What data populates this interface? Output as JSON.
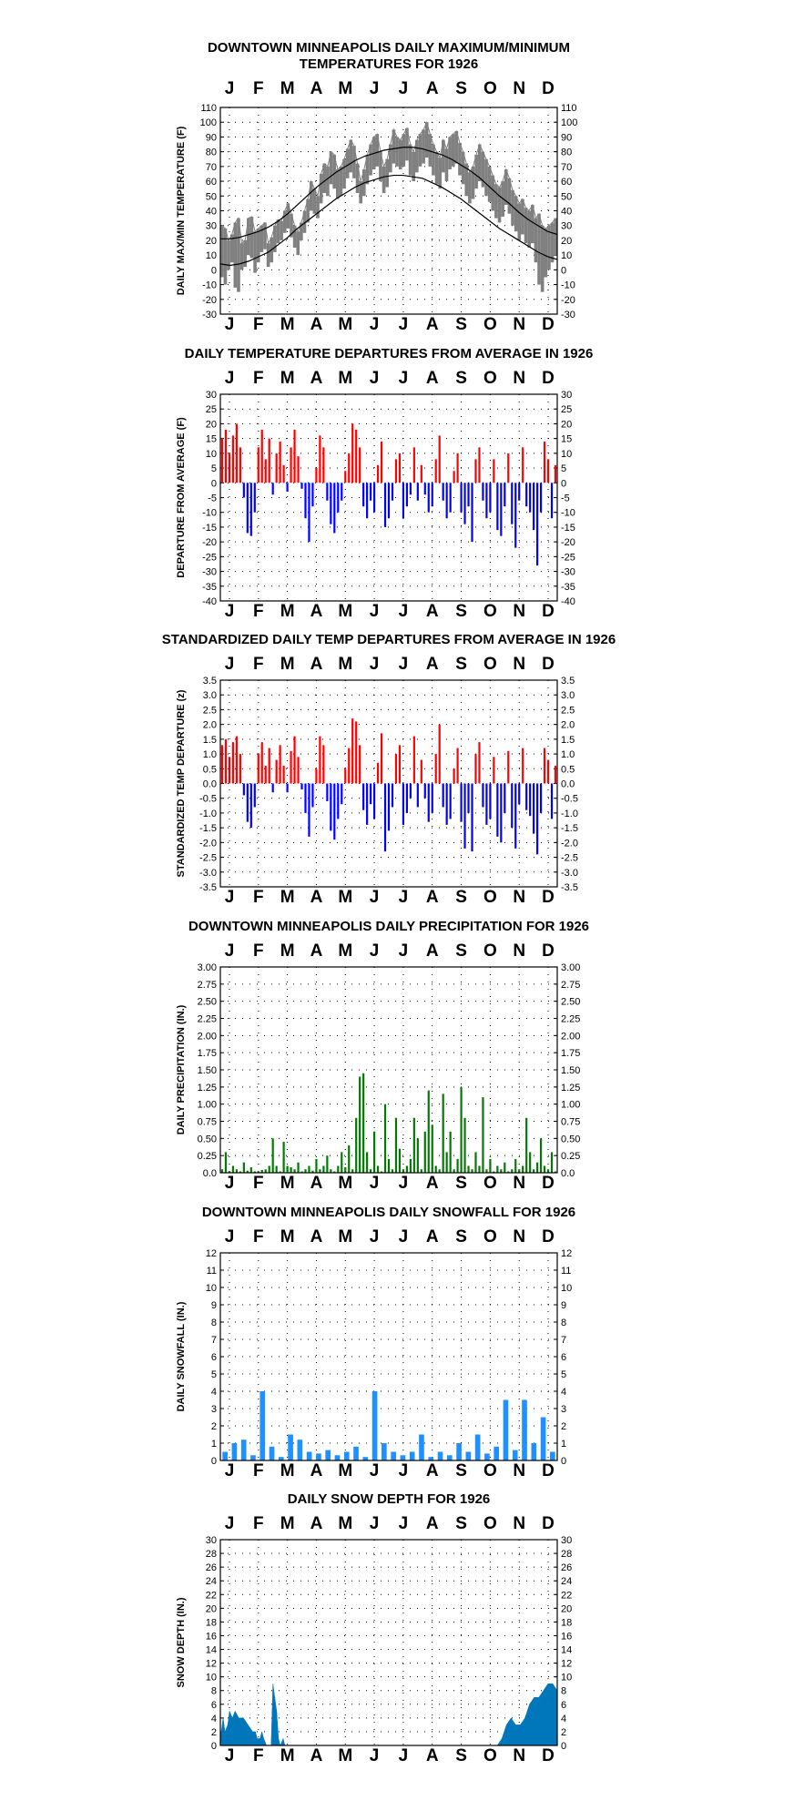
{
  "months": [
    "J",
    "F",
    "M",
    "A",
    "M",
    "J",
    "J",
    "A",
    "S",
    "O",
    "N",
    "D"
  ],
  "chart_data": [
    {
      "id": "temps",
      "type": "line",
      "title": [
        "DOWNTOWN MINNEAPOLIS DAILY MAXIMUM/MINIMUM",
        "TEMPERATURES FOR 1926"
      ],
      "ylabel": "DAILY MAX/MIN TEMPERATURE (F)",
      "ylim": [
        -30,
        110
      ],
      "yticks": [
        110,
        100,
        90,
        80,
        70,
        60,
        50,
        40,
        30,
        20,
        10,
        0,
        -10,
        -20,
        -30
      ],
      "series": [
        {
          "kind": "observed_range",
          "color": "#808080",
          "max": [
            30,
            28,
            20,
            24,
            32,
            35,
            18,
            20,
            35,
            36,
            26,
            28,
            30,
            32,
            18,
            22,
            30,
            34,
            33,
            40,
            45,
            38,
            30,
            26,
            32,
            40,
            48,
            60,
            55,
            50,
            65,
            72,
            70,
            80,
            78,
            68,
            70,
            75,
            82,
            88,
            84,
            72,
            60,
            68,
            78,
            85,
            90,
            92,
            80,
            70,
            75,
            85,
            95,
            90,
            88,
            92,
            96,
            85,
            80,
            88,
            92,
            95,
            100,
            92,
            85,
            80,
            76,
            88,
            82,
            90,
            92,
            94,
            86,
            80,
            72,
            66,
            70,
            78,
            85,
            80,
            75,
            70,
            64,
            58,
            56,
            60,
            68,
            62,
            54,
            50,
            45,
            48,
            42,
            40,
            44,
            35,
            38,
            30,
            28,
            30,
            32,
            35
          ],
          "min": [
            -5,
            -10,
            0,
            5,
            -12,
            -15,
            0,
            2,
            10,
            8,
            -2,
            5,
            12,
            14,
            2,
            5,
            12,
            18,
            20,
            25,
            28,
            22,
            15,
            10,
            20,
            25,
            32,
            40,
            38,
            35,
            45,
            52,
            50,
            58,
            55,
            48,
            50,
            55,
            62,
            66,
            62,
            52,
            45,
            50,
            58,
            64,
            68,
            70,
            60,
            52,
            56,
            66,
            72,
            70,
            68,
            70,
            74,
            64,
            60,
            66,
            70,
            72,
            76,
            70,
            64,
            58,
            55,
            66,
            60,
            68,
            70,
            72,
            64,
            58,
            50,
            45,
            48,
            55,
            60,
            56,
            50,
            46,
            40,
            35,
            32,
            36,
            44,
            38,
            30,
            26,
            20,
            24,
            18,
            15,
            18,
            5,
            -10,
            -15,
            -5,
            0,
            5,
            10
          ]
        },
        {
          "kind": "normal_max",
          "color": "#000000",
          "y": [
            21,
            21,
            22,
            24,
            26,
            29,
            33,
            38,
            44,
            50,
            56,
            61,
            66,
            70,
            74,
            77,
            79,
            81,
            82,
            83,
            83,
            82,
            80,
            78,
            75,
            71,
            67,
            62,
            56,
            50,
            45,
            39,
            34,
            30,
            26,
            24
          ]
        },
        {
          "kind": "normal_min",
          "color": "#000000",
          "y": [
            4,
            3,
            4,
            6,
            9,
            12,
            17,
            22,
            28,
            33,
            38,
            43,
            48,
            52,
            56,
            59,
            61,
            63,
            64,
            64,
            63,
            62,
            59,
            56,
            52,
            48,
            43,
            38,
            33,
            28,
            24,
            20,
            16,
            12,
            9,
            7
          ]
        }
      ]
    },
    {
      "id": "departures",
      "type": "bar",
      "title": [
        "DAILY TEMPERATURE DEPARTURES FROM AVERAGE IN 1926"
      ],
      "ylabel": "DEPARTURE FROM AVERAGE (F)",
      "ylim": [
        -40,
        30
      ],
      "yticks": [
        30,
        25,
        20,
        15,
        10,
        5,
        0,
        -5,
        -10,
        -15,
        -20,
        -25,
        -30,
        -35,
        -40
      ],
      "pos_color": "#ff0000",
      "neg_color": "#0000ff",
      "values": [
        15,
        18,
        10,
        16,
        20,
        12,
        -5,
        -17,
        -18,
        -10,
        12,
        18,
        8,
        15,
        -4,
        10,
        14,
        6,
        -3,
        12,
        18,
        9,
        -2,
        -12,
        -20,
        -8,
        5,
        16,
        12,
        -6,
        -14,
        -17,
        -10,
        -6,
        4,
        10,
        20,
        18,
        12,
        -8,
        -12,
        -6,
        -10,
        6,
        14,
        -15,
        -12,
        -6,
        8,
        10,
        -12,
        -8,
        -4,
        12,
        -6,
        6,
        -4,
        -10,
        -8,
        8,
        16,
        -6,
        -12,
        -10,
        4,
        10,
        -10,
        -14,
        -8,
        -20,
        8,
        12,
        -6,
        -12,
        -10,
        8,
        -16,
        -18,
        -8,
        10,
        -14,
        -22,
        -6,
        12,
        -8,
        -10,
        -16,
        -28,
        -10,
        14,
        8,
        -12,
        6
      ]
    },
    {
      "id": "standardized",
      "type": "bar",
      "title": [
        "STANDARDIZED DAILY TEMP DEPARTURES FROM AVERAGE IN 1926"
      ],
      "ylabel": "STANDARDIZED TEMP DEPARTURE (z)",
      "ylim": [
        -3.5,
        3.5
      ],
      "yticks": [
        "3.5",
        "3.0",
        "2.5",
        "2.0",
        "1.5",
        "1.0",
        "0.5",
        "0.0",
        "-0.5",
        "-1.0",
        "-1.5",
        "-2.0",
        "-2.5",
        "-3.0",
        "-3.5"
      ],
      "pos_color": "#ff0000",
      "neg_color": "#0000ff",
      "values": [
        1.3,
        1.5,
        0.9,
        1.4,
        1.6,
        1.0,
        -0.4,
        -1.3,
        -1.5,
        -0.8,
        1.0,
        1.4,
        0.6,
        1.2,
        -0.3,
        0.8,
        1.3,
        0.6,
        -0.3,
        1.1,
        1.6,
        0.9,
        -0.2,
        -1.0,
        -1.8,
        -0.8,
        0.5,
        1.6,
        1.3,
        -0.6,
        -1.6,
        -1.9,
        -1.2,
        -0.7,
        0.5,
        1.2,
        2.2,
        2.1,
        1.3,
        -0.9,
        -1.4,
        -0.7,
        -1.2,
        0.7,
        1.7,
        -2.3,
        -1.6,
        -0.8,
        1.0,
        1.3,
        -1.4,
        -1.0,
        -0.5,
        1.6,
        -0.8,
        0.8,
        -0.5,
        -1.3,
        -1.0,
        1.0,
        2.0,
        -0.8,
        -1.4,
        -1.2,
        0.5,
        1.2,
        -1.3,
        -2.2,
        -1.0,
        -2.3,
        1.0,
        1.4,
        -0.8,
        -1.4,
        -1.2,
        0.9,
        -1.8,
        -2.0,
        -1.0,
        1.1,
        -1.5,
        -2.2,
        -0.7,
        1.2,
        -0.9,
        -1.1,
        -1.7,
        -2.4,
        -1.0,
        1.2,
        0.8,
        -1.2,
        0.6
      ]
    },
    {
      "id": "precip",
      "type": "bar",
      "title": [
        "DOWNTOWN MINNEAPOLIS DAILY PRECIPITATION FOR 1926"
      ],
      "ylabel": "DAILY PRECIPITATION (IN.)",
      "ylim": [
        0,
        3
      ],
      "yticks": [
        "3.00",
        "2.75",
        "2.50",
        "2.25",
        "2.00",
        "1.75",
        "1.50",
        "1.25",
        "1.00",
        "0.75",
        "0.50",
        "0.25",
        "0.0"
      ],
      "color": "#007a00",
      "values": [
        0.05,
        0.3,
        0.02,
        0.1,
        0.05,
        0.02,
        0.15,
        0.03,
        0.08,
        0.02,
        0.02,
        0.04,
        0.05,
        0.1,
        0.5,
        0.1,
        0.02,
        0.45,
        0.1,
        0.08,
        0.05,
        0.15,
        0.02,
        0.05,
        0.1,
        0.03,
        0.2,
        0.05,
        0.1,
        0.25,
        0.05,
        0.02,
        0.1,
        0.3,
        0.08,
        0.4,
        0.05,
        0.8,
        1.4,
        1.45,
        0.3,
        0.05,
        0.6,
        0.1,
        0.02,
        1.0,
        0.2,
        0.05,
        0.8,
        0.35,
        0.05,
        0.1,
        0.2,
        0.8,
        0.5,
        0.05,
        0.6,
        1.2,
        0.7,
        0.1,
        0.05,
        1.15,
        0.3,
        0.6,
        0.05,
        0.2,
        1.25,
        0.8,
        0.1,
        0.05,
        0.3,
        0.1,
        1.1,
        0.05,
        0.2,
        0.02,
        0.1,
        0.05,
        0.15,
        0.02,
        0.05,
        0.2,
        0.05,
        0.1,
        0.8,
        0.3,
        0.05,
        0.15,
        0.5,
        0.1,
        0.05,
        0.3,
        0.02
      ]
    },
    {
      "id": "snowfall",
      "type": "bar",
      "title": [
        "DOWNTOWN MINNEAPOLIS DAILY SNOWFALL FOR 1926"
      ],
      "ylabel": "DAILY SNOWFALL (IN.)",
      "ylim": [
        0,
        12
      ],
      "yticks": [
        12,
        11,
        10,
        9,
        8,
        7,
        6,
        5,
        4,
        3,
        2,
        1,
        0
      ],
      "color": "#1e90ff",
      "values": [
        0.5,
        1.0,
        1.2,
        0.3,
        4.0,
        0.8,
        0.2,
        1.5,
        1.2,
        0.5,
        0.4,
        0.6,
        0.3,
        0.5,
        0.8,
        0.2,
        4.0,
        1.0,
        0.5,
        0.3,
        0.5,
        1.5,
        0.2,
        0.5,
        0.3,
        1.0,
        0.5,
        1.5,
        0.4,
        0.8,
        3.5,
        0.6,
        3.5,
        1.0,
        2.5,
        0.5
      ]
    },
    {
      "id": "snowdepth",
      "type": "area",
      "title": [
        "DAILY SNOW DEPTH FOR 1926"
      ],
      "ylabel": "SNOW DEPTH (IN.)",
      "ylim": [
        0,
        30
      ],
      "yticks": [
        30,
        28,
        26,
        24,
        22,
        20,
        18,
        16,
        14,
        12,
        10,
        8,
        6,
        4,
        2,
        0
      ],
      "color": "#0077bb",
      "x": [
        0,
        3,
        5,
        8,
        10,
        13,
        16,
        20,
        25,
        30,
        35,
        38,
        40,
        43,
        45,
        47,
        50,
        55,
        57,
        59,
        61,
        63,
        65,
        68,
        70,
        300,
        305,
        310,
        315,
        320,
        325,
        330,
        335,
        340,
        345,
        350,
        355,
        360,
        365
      ],
      "y": [
        1,
        4,
        2,
        3,
        5,
        4,
        5,
        4,
        4,
        3,
        2,
        2,
        1,
        1,
        2,
        1,
        0,
        0,
        9,
        7,
        5,
        1,
        0,
        1,
        0,
        0,
        1,
        3,
        4,
        3,
        3,
        4,
        6,
        7,
        7,
        8,
        9,
        9,
        8
      ]
    }
  ]
}
